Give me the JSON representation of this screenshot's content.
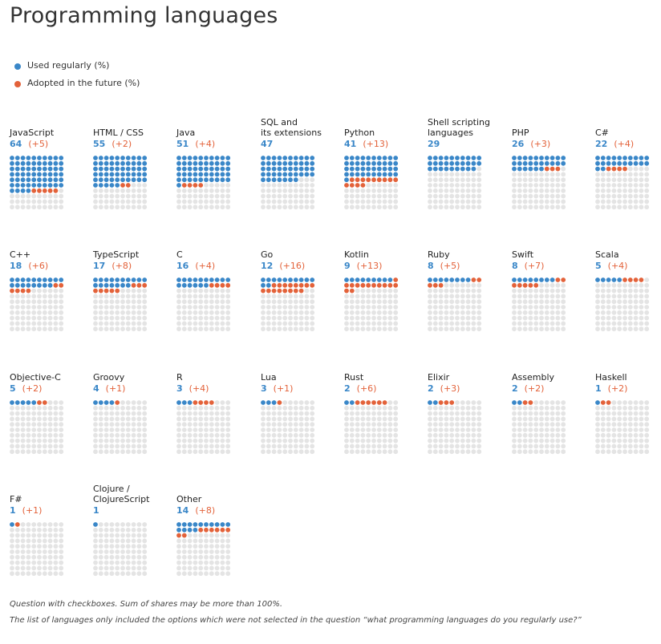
{
  "title": "Programming languages",
  "legend": {
    "used_label": "Used regularly (%)",
    "adopt_label": "Adopted in the future (%)"
  },
  "colors": {
    "used": "#3a87c8",
    "adopt": "#e3623a",
    "empty": "#e4e4e4"
  },
  "chart_data": {
    "type": "waffle",
    "title": "Programming languages",
    "series": [
      {
        "name": "Used regularly (%)"
      },
      {
        "name": "Adopted in the future (%)"
      }
    ],
    "items": [
      {
        "name": "JavaScript",
        "used": 64,
        "adopt": 5,
        "adopt_label": "(+5)"
      },
      {
        "name": "HTML / CSS",
        "used": 55,
        "adopt": 2,
        "adopt_label": "(+2)"
      },
      {
        "name": "Java",
        "used": 51,
        "adopt": 4,
        "adopt_label": "(+4)"
      },
      {
        "name": "SQL and its extensions",
        "name_lines": [
          "SQL and",
          "its extensions"
        ],
        "used": 47,
        "adopt": 0,
        "adopt_label": ""
      },
      {
        "name": "Python",
        "used": 41,
        "adopt": 13,
        "adopt_label": "(+13)"
      },
      {
        "name": "Shell scripting languages",
        "name_lines": [
          "Shell scripting",
          "languages"
        ],
        "used": 29,
        "adopt": 0,
        "adopt_label": ""
      },
      {
        "name": "PHP",
        "used": 26,
        "adopt": 3,
        "adopt_label": "(+3)"
      },
      {
        "name": "C#",
        "used": 22,
        "adopt": 4,
        "adopt_label": "(+4)"
      },
      {
        "name": "C++",
        "used": 18,
        "adopt": 6,
        "adopt_label": "(+6)"
      },
      {
        "name": "TypeScript",
        "used": 17,
        "adopt": 8,
        "adopt_label": "(+8)"
      },
      {
        "name": "C",
        "used": 16,
        "adopt": 4,
        "adopt_label": "(+4)"
      },
      {
        "name": "Go",
        "used": 12,
        "adopt": 16,
        "adopt_label": "(+16)"
      },
      {
        "name": "Kotlin",
        "used": 9,
        "adopt": 13,
        "adopt_label": "(+13)"
      },
      {
        "name": "Ruby",
        "used": 8,
        "adopt": 5,
        "adopt_label": "(+5)"
      },
      {
        "name": "Swift",
        "used": 8,
        "adopt": 7,
        "adopt_label": "(+7)"
      },
      {
        "name": "Scala",
        "used": 5,
        "adopt": 4,
        "adopt_label": "(+4)"
      },
      {
        "name": "Objective-C",
        "used": 5,
        "adopt": 2,
        "adopt_label": "(+2)"
      },
      {
        "name": "Groovy",
        "used": 4,
        "adopt": 1,
        "adopt_label": "(+1)"
      },
      {
        "name": "R",
        "used": 3,
        "adopt": 4,
        "adopt_label": "(+4)"
      },
      {
        "name": "Lua",
        "used": 3,
        "adopt": 1,
        "adopt_label": "(+1)"
      },
      {
        "name": "Rust",
        "used": 2,
        "adopt": 6,
        "adopt_label": "(+6)"
      },
      {
        "name": "Elixir",
        "used": 2,
        "adopt": 3,
        "adopt_label": "(+3)"
      },
      {
        "name": "Assembly",
        "used": 2,
        "adopt": 2,
        "adopt_label": "(+2)"
      },
      {
        "name": "Haskell",
        "used": 1,
        "adopt": 2,
        "adopt_label": "(+2)"
      },
      {
        "name": "F#",
        "used": 1,
        "adopt": 1,
        "adopt_label": "(+1)"
      },
      {
        "name": "Clojure / ClojureScript",
        "name_lines": [
          "Clojure /",
          "ClojureScript"
        ],
        "used": 1,
        "adopt": 0,
        "adopt_label": ""
      },
      {
        "name": "Other",
        "used": 14,
        "adopt": 8,
        "adopt_label": "(+8)"
      }
    ]
  },
  "footnotes": [
    "Question with checkboxes. Sum of shares may be more than 100%.",
    "The list of languages only included the options which were not selected in the question “what programming languages do you regularly use?”"
  ]
}
